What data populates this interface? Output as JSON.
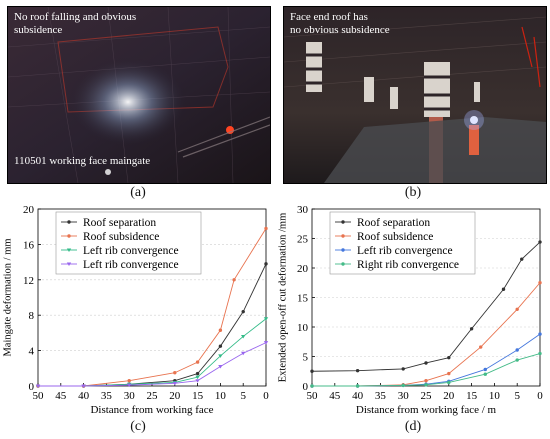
{
  "photos": [
    {
      "panel_label": "(a)",
      "annotations": [
        "No roof falling and obvious",
        "subsidence"
      ],
      "caption": "110501 working face maingate"
    },
    {
      "panel_label": "(b)",
      "annotations": [
        "Face end roof  has",
        "no obvious subsidence"
      ]
    }
  ],
  "colors": {
    "roof_separation": "#333333",
    "roof_subsidence": "#e8734f",
    "left_rib_green": "#33bb88",
    "left_rib_purple": "#9966ee",
    "left_rib_blue": "#4477dd",
    "right_rib_green": "#44bb88"
  },
  "chart_data": [
    {
      "panel_label": "(c)",
      "type": "line",
      "xlabel": "Distance from working face",
      "ylabel": "Maingate deformation / mm",
      "xlim": [
        50,
        0
      ],
      "ylim": [
        0,
        20
      ],
      "xticks": [
        50,
        45,
        40,
        35,
        30,
        25,
        20,
        15,
        10,
        5,
        0
      ],
      "yticks": [
        0,
        4,
        8,
        12,
        16,
        20
      ],
      "legend_position": "top-left",
      "grid": true,
      "series": [
        {
          "name": "Roof separation",
          "x": [
            50,
            40,
            30,
            20,
            15,
            10,
            5,
            0
          ],
          "values": [
            0,
            0,
            0.2,
            0.6,
            1.4,
            4.5,
            8.4,
            13.8
          ]
        },
        {
          "name": "Roof subsidence",
          "x": [
            50,
            40,
            30,
            20,
            15,
            10,
            7,
            0
          ],
          "values": [
            0,
            0,
            0.6,
            1.5,
            2.7,
            6.3,
            12,
            17.8
          ]
        },
        {
          "name": "Left rib convergence",
          "x": [
            50,
            40,
            30,
            20,
            15,
            10,
            5,
            0
          ],
          "values": [
            0,
            0,
            0.2,
            0.4,
            1.0,
            3.4,
            5.6,
            7.6
          ]
        },
        {
          "name": "Left rib convergence",
          "x": [
            50,
            40,
            30,
            20,
            15,
            10,
            5,
            0
          ],
          "values": [
            0,
            0,
            0.1,
            0.3,
            0.6,
            2.2,
            3.7,
            4.9
          ]
        }
      ]
    },
    {
      "panel_label": "(d)",
      "type": "line",
      "xlabel": "Distance from working face / m",
      "ylabel": "Extended open-off cut deformation /mm",
      "xlim": [
        50,
        0
      ],
      "ylim": [
        0,
        30
      ],
      "xticks": [
        50,
        45,
        40,
        35,
        30,
        25,
        20,
        15,
        10,
        5,
        0
      ],
      "yticks": [
        0,
        5,
        10,
        15,
        20,
        25,
        30
      ],
      "legend_position": "top-left",
      "grid": true,
      "series": [
        {
          "name": "Roof separation",
          "x": [
            50,
            40,
            30,
            25,
            20,
            15,
            8,
            4,
            0
          ],
          "values": [
            2.5,
            2.6,
            2.9,
            3.9,
            4.8,
            9.7,
            16.4,
            21.5,
            24.4
          ]
        },
        {
          "name": "Roof subsidence",
          "x": [
            50,
            40,
            30,
            25,
            20,
            13,
            5,
            0
          ],
          "values": [
            0,
            0,
            0.2,
            0.9,
            2.1,
            6.6,
            13,
            17.5
          ]
        },
        {
          "name": "Left rib convergence",
          "x": [
            50,
            40,
            30,
            25,
            20,
            12,
            5,
            0
          ],
          "values": [
            0,
            0,
            0.1,
            0.3,
            0.8,
            2.8,
            6.1,
            8.8
          ]
        },
        {
          "name": "Right rib convergence",
          "x": [
            50,
            40,
            30,
            25,
            20,
            12,
            5,
            0
          ],
          "values": [
            0,
            0,
            0.1,
            0.2,
            0.6,
            2.0,
            4.4,
            5.5
          ]
        }
      ]
    }
  ]
}
